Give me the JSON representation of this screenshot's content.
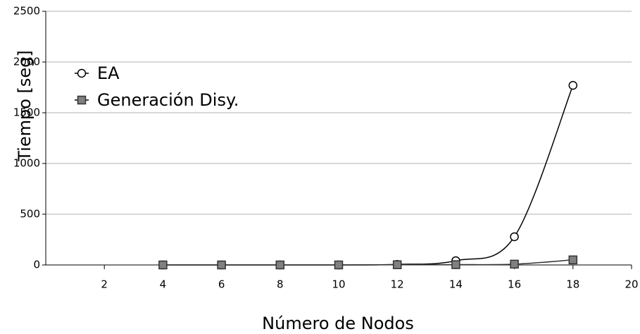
{
  "chart_data": {
    "type": "line",
    "x_label": "Número de Nodos",
    "y_label": "Tiempo [seg]",
    "x": [
      4,
      6,
      8,
      10,
      12,
      14,
      16,
      18
    ],
    "series": [
      {
        "name": "EA",
        "color": "#ffffff",
        "marker": "circle",
        "values": [
          0,
          0,
          0,
          0,
          5,
          42,
          278,
          1770
        ]
      },
      {
        "name": "Generación Disy.",
        "color": "#808080",
        "marker": "square",
        "values": [
          0,
          0,
          0,
          0,
          2,
          3,
          8,
          50
        ]
      }
    ],
    "xlim": [
      0,
      20
    ],
    "xticks": [
      2,
      4,
      6,
      8,
      10,
      12,
      14,
      16,
      18,
      20
    ],
    "ylim": [
      0,
      2500
    ],
    "yticks": [
      0,
      500,
      1000,
      1500,
      2000,
      2500
    ],
    "grid": true,
    "legend": "upper left",
    "smooth": true
  }
}
